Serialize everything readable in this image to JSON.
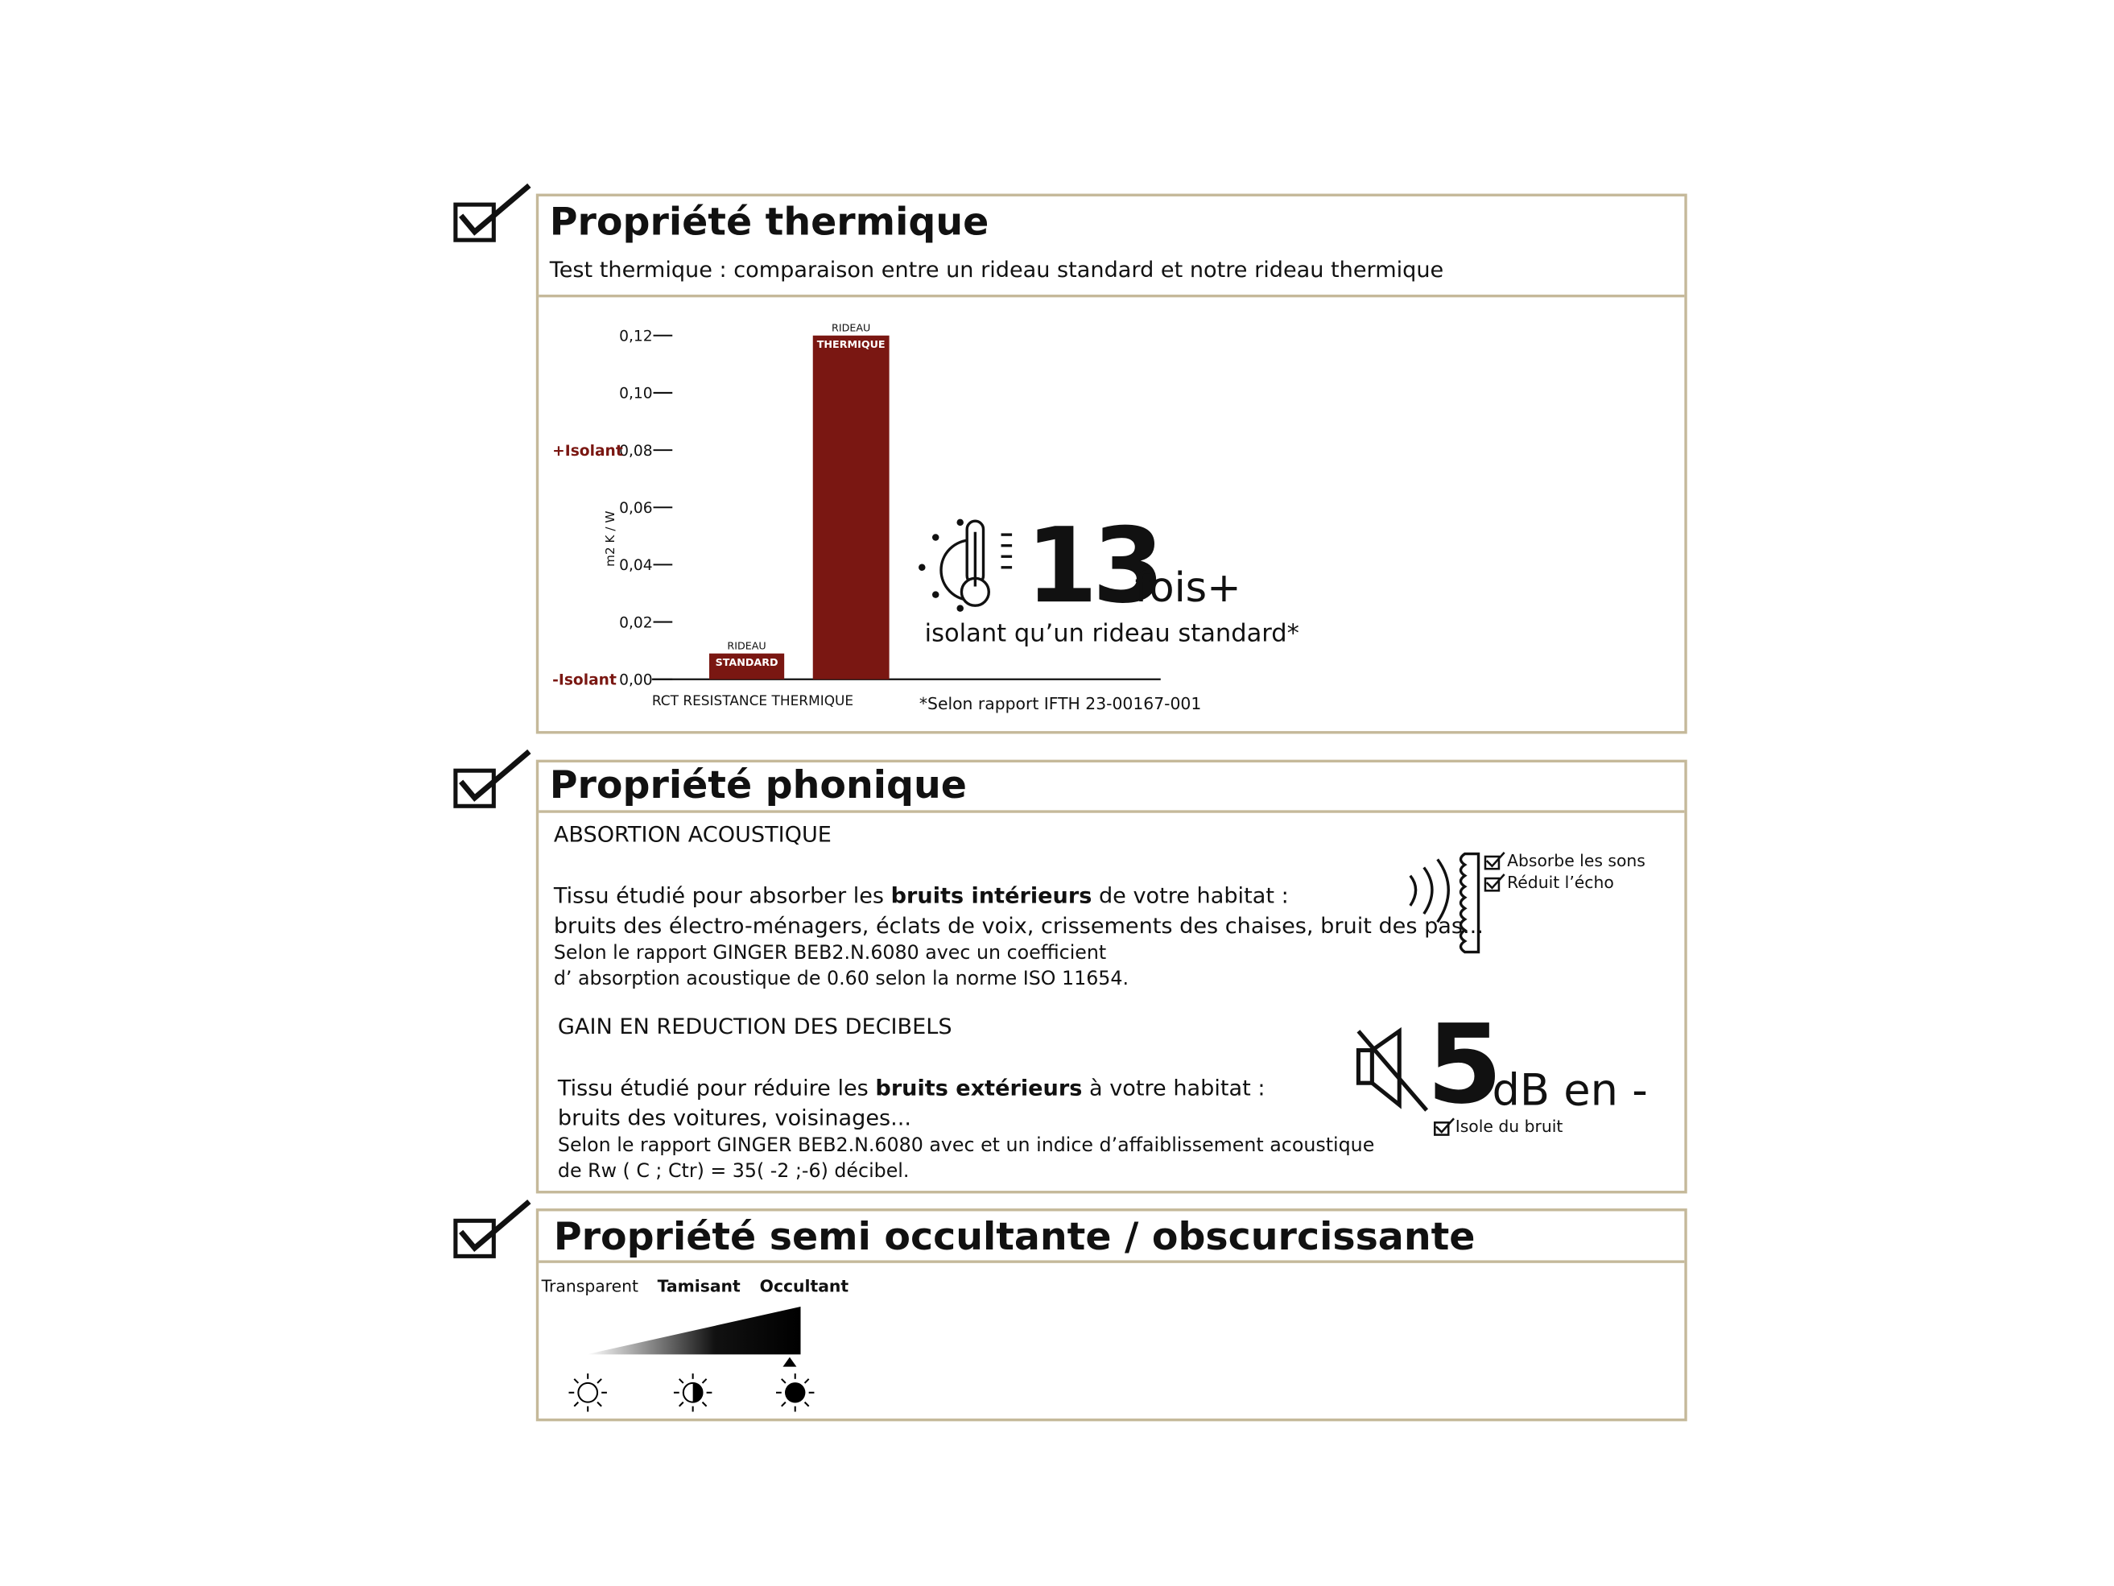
{
  "colors": {
    "accent": "#7a1712",
    "border": "#c5b99a",
    "text": "#111111"
  },
  "thermal": {
    "title": "Propriété thermique",
    "subtitle": "Test thermique : comparaison entre un rideau standard et notre rideau thermique",
    "big_number": "13",
    "big_suffix": "fois+",
    "big_caption": "isolant qu’un rideau standard*",
    "footnote": "*Selon rapport IFTH 23-00167-001",
    "icon": "sun-thermometer-icon"
  },
  "chart_data": {
    "type": "bar",
    "categories": [
      "RIDEAU STANDARD",
      "RIDEAU THERMIQUE"
    ],
    "category_labels": [
      {
        "top": "RIDEAU",
        "bottom": "STANDARD"
      },
      {
        "top": "RIDEAU",
        "bottom": "THERMIQUE"
      }
    ],
    "values": [
      0.009,
      0.12
    ],
    "xlabel": "RCT RESISTANCE THERMIQUE",
    "ylabel": "m2 K / W",
    "ylim": [
      0,
      0.12
    ],
    "yticks": [
      "0,00",
      "0,02",
      "0,04",
      "0,06",
      "0,08",
      "0,10",
      "0,12"
    ],
    "annotations": {
      "high": "+Isolant",
      "low": "-Isolant"
    },
    "bar_color": "#7a1712",
    "grid": false
  },
  "phonic": {
    "title": "Propriété phonique",
    "absorption": {
      "heading": "ABSORTION ACOUSTIQUE",
      "line1_pre": "Tissu étudié pour absorber les ",
      "line1_bold": "bruits intérieurs",
      "line1_post": " de votre habitat :",
      "line2": "bruits des électro-ménagers, éclats de voix, crissements des chaises, bruit des pas...",
      "line3": "Selon le rapport GINGER BEB2.N.6080 avec un coefficient",
      "line4": "d’ absorption acoustique de 0.60 selon la norme ISO 11654.",
      "checks": [
        "Absorbe les sons",
        "Réduit l’écho"
      ]
    },
    "reduction": {
      "heading": "GAIN EN REDUCTION DES DECIBELS",
      "line1_pre": "Tissu étudié pour réduire les ",
      "line1_bold": "bruits extérieurs",
      "line1_post": " à votre habitat :",
      "line2": "bruits des voitures, voisinages...",
      "line3": "Selon le rapport GINGER BEB2.N.6080 avec et un indice d’affaiblissement acoustique",
      "line4": "de Rw ( C ; Ctr) = 35( -2 ;-6) décibel.",
      "big_number": "5",
      "big_suffix": "dB en -",
      "check": "Isole du bruit"
    }
  },
  "opacity": {
    "title": "Propriété semi occultante / obscurcissante",
    "levels": [
      "Transparent",
      "Tamisant",
      "Occultant"
    ],
    "selected": "Occultant"
  }
}
